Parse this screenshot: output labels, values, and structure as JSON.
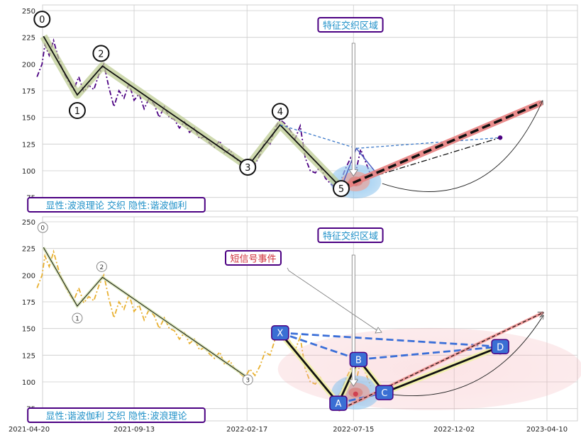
{
  "chart_data": [
    {
      "type": "line",
      "panel": "top",
      "ylim": [
        62,
        258
      ],
      "yticks": [
        75,
        100,
        125,
        150,
        175,
        200,
        225,
        250
      ],
      "grid": true,
      "series": [
        {
          "style": "dash-dot",
          "color": "#4b0082",
          "x": [
            "2021-05-01",
            "2021-05-08",
            "2021-05-12",
            "2021-05-18",
            "2021-05-24",
            "2021-05-31",
            "2021-06-07",
            "2021-06-14",
            "2021-06-21",
            "2021-06-28",
            "2021-07-05",
            "2021-07-12",
            "2021-07-19",
            "2021-07-26",
            "2021-08-02",
            "2021-08-09",
            "2021-08-16",
            "2021-08-23",
            "2021-08-30",
            "2021-09-06",
            "2021-09-13",
            "2021-09-20",
            "2021-09-27",
            "2021-10-04",
            "2021-10-11",
            "2021-10-18",
            "2021-10-25",
            "2021-11-01",
            "2021-11-08",
            "2021-11-15",
            "2021-11-22",
            "2021-11-29",
            "2021-12-06",
            "2021-12-13",
            "2021-12-20",
            "2021-12-27",
            "2022-01-03",
            "2022-01-10",
            "2022-01-17",
            "2022-01-24",
            "2022-01-31",
            "2022-02-07",
            "2022-02-14",
            "2022-02-21",
            "2022-02-28",
            "2022-03-07",
            "2022-03-14",
            "2022-03-21",
            "2022-03-28",
            "2022-04-04",
            "2022-04-11",
            "2022-04-18",
            "2022-04-25",
            "2022-05-02",
            "2022-05-09",
            "2022-05-16",
            "2022-05-23",
            "2022-05-30",
            "2022-06-06",
            "2022-06-13",
            "2022-06-20",
            "2022-06-27",
            "2022-07-04",
            "2022-07-11",
            "2022-07-18",
            "2022-07-25",
            "2022-08-01",
            "2022-08-08"
          ],
          "values": [
            188,
            200,
            218,
            208,
            222,
            205,
            192,
            183,
            176,
            188,
            174,
            180,
            176,
            190,
            200,
            178,
            160,
            175,
            168,
            182,
            166,
            172,
            158,
            168,
            162,
            150,
            160,
            150,
            148,
            140,
            146,
            136,
            140,
            130,
            132,
            126,
            122,
            128,
            116,
            120,
            112,
            108,
            104,
            112,
            106,
            115,
            128,
            125,
            140,
            148,
            144,
            138,
            130,
            142,
            112,
            100,
            98,
            104,
            93,
            88,
            84,
            90,
            102,
            112,
            98,
            120,
            108,
            96
          ]
        }
      ],
      "wave_points": [
        {
          "label": "0",
          "x": "2021-05-10",
          "y": 226
        },
        {
          "label": "1",
          "x": "2021-06-26",
          "y": 171
        },
        {
          "label": "2",
          "x": "2021-07-31",
          "y": 198
        },
        {
          "label": "3",
          "x": "2022-02-18",
          "y": 104
        },
        {
          "label": "4",
          "x": "2022-04-04",
          "y": 143
        },
        {
          "label": "5",
          "x": "2022-06-28",
          "y": 84
        }
      ],
      "annotations": [
        {
          "text": "特征交织区域",
          "color": "#1e90c8"
        },
        {
          "text": "显性:波浪理论 交织 隐性:谐波伽利",
          "color": "#1e90c8"
        }
      ]
    },
    {
      "type": "line",
      "panel": "bottom",
      "ylim": [
        62,
        258
      ],
      "yticks": [
        75,
        100,
        125,
        150,
        175,
        200,
        225,
        250
      ],
      "xticks": [
        "2021-04-20",
        "2021-09-13",
        "2022-02-17",
        "2022-07-15",
        "2022-12-02",
        "2023-04-10"
      ],
      "grid": true,
      "series": [
        {
          "style": "dash-dot",
          "color": "#e8b030",
          "x": [
            "2021-05-01",
            "2021-05-08",
            "2021-05-12",
            "2021-05-18",
            "2021-05-24",
            "2021-05-31",
            "2021-06-07",
            "2021-06-14",
            "2021-06-21",
            "2021-06-28",
            "2021-07-05",
            "2021-07-12",
            "2021-07-19",
            "2021-07-26",
            "2021-08-02",
            "2021-08-09",
            "2021-08-16",
            "2021-08-23",
            "2021-08-30",
            "2021-09-06",
            "2021-09-13",
            "2021-09-20",
            "2021-09-27",
            "2021-10-04",
            "2021-10-11",
            "2021-10-18",
            "2021-10-25",
            "2021-11-01",
            "2021-11-08",
            "2021-11-15",
            "2021-11-22",
            "2021-11-29",
            "2021-12-06",
            "2021-12-13",
            "2021-12-20",
            "2021-12-27",
            "2022-01-03",
            "2022-01-10",
            "2022-01-17",
            "2022-01-24",
            "2022-01-31",
            "2022-02-07",
            "2022-02-14",
            "2022-02-21",
            "2022-02-28",
            "2022-03-07",
            "2022-03-14",
            "2022-03-21",
            "2022-03-28",
            "2022-04-04",
            "2022-04-11",
            "2022-04-18",
            "2022-04-25",
            "2022-05-02",
            "2022-05-09",
            "2022-05-16",
            "2022-05-23",
            "2022-05-30",
            "2022-06-06",
            "2022-06-13",
            "2022-06-20",
            "2022-06-27",
            "2022-07-04",
            "2022-07-11",
            "2022-07-18",
            "2022-07-25",
            "2022-08-01",
            "2022-08-08"
          ],
          "values": [
            188,
            200,
            218,
            208,
            222,
            205,
            192,
            183,
            176,
            188,
            174,
            180,
            176,
            190,
            200,
            178,
            160,
            175,
            168,
            182,
            166,
            172,
            158,
            168,
            162,
            150,
            160,
            150,
            148,
            140,
            146,
            136,
            140,
            130,
            132,
            126,
            122,
            128,
            116,
            120,
            112,
            108,
            104,
            112,
            106,
            115,
            128,
            125,
            140,
            148,
            144,
            138,
            130,
            142,
            112,
            100,
            98,
            104,
            93,
            88,
            84,
            90,
            102,
            112,
            98,
            120,
            108,
            96
          ]
        }
      ],
      "wave_points": [
        {
          "label": "0",
          "x": "2021-05-10",
          "y": 226
        },
        {
          "label": "1",
          "x": "2021-06-26",
          "y": 171
        },
        {
          "label": "2",
          "x": "2021-07-31",
          "y": 198
        },
        {
          "label": "3",
          "x": "2022-02-18",
          "y": 104
        }
      ],
      "harmonic_points": [
        {
          "label": "X",
          "x": "2022-04-04",
          "y": 146
        },
        {
          "label": "A",
          "x": "2022-06-24",
          "y": 80
        },
        {
          "label": "B",
          "x": "2022-07-22",
          "y": 121
        },
        {
          "label": "C",
          "x": "2022-08-27",
          "y": 90
        },
        {
          "label": "D",
          "x": "2023-02-04",
          "y": 133
        }
      ],
      "annotations": [
        {
          "text": "特征交织区域",
          "color": "#1e90c8"
        },
        {
          "text": "短信号事件",
          "color": "#d0303a"
        },
        {
          "text": "显性:谐波伽利 交织 隐性:波浪理论",
          "color": "#1e90c8"
        }
      ]
    }
  ]
}
